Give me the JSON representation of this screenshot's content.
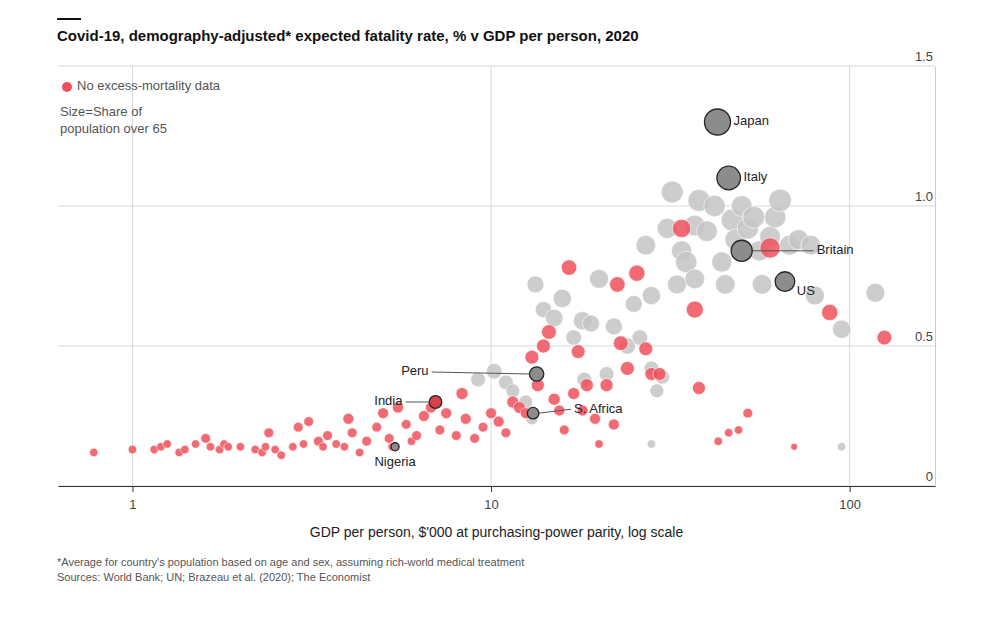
{
  "chart_data": {
    "type": "scatter",
    "title": "Covid-19, demography-adjusted* expected fatality rate, % v GDP per person, 2020",
    "x_label": "GDP per person, $'000 at purchasing-power parity, log scale",
    "size_label": [
      "Size=Share of",
      "population over 65"
    ],
    "notes": [
      "*Average for country's population based on age and sex, assuming rich-world medical treatment",
      "Sources: World Bank; UN; Brazeau et al. (2020); The Economist"
    ],
    "log": "x",
    "grid": true,
    "legend": "top-left",
    "xlim": [
      0.62,
      173
    ],
    "xticks": [
      1,
      10,
      100
    ],
    "ylim": [
      0,
      1.5
    ],
    "yticks": [
      0,
      0.5,
      {
        "value": 1,
        "label": "1.0"
      },
      1.5
    ],
    "series": [
      {
        "color": "#c4c4c4",
        "x": [
          9.2,
          10.2,
          11,
          11.5,
          12.5,
          13,
          13.3,
          14,
          15,
          15.8,
          17,
          18,
          19,
          20,
          18.2,
          21,
          22,
          24,
          25,
          26,
          27,
          28,
          28,
          29,
          30,
          31,
          32,
          33,
          34,
          35,
          37,
          37,
          38,
          40,
          42,
          44,
          45,
          47,
          48,
          50,
          52,
          54,
          56,
          57,
          60,
          62,
          64,
          68,
          72,
          78,
          80,
          95,
          118,
          28,
          95
        ],
        "values": [
          0.38,
          0.41,
          0.37,
          0.34,
          0.3,
          0.24,
          0.72,
          0.63,
          0.6,
          0.67,
          0.53,
          0.59,
          0.58,
          0.74,
          0.38,
          0.4,
          0.57,
          0.5,
          0.65,
          0.53,
          0.86,
          0.68,
          0.42,
          0.34,
          0.39,
          0.92,
          1.05,
          0.72,
          0.84,
          0.8,
          0.93,
          0.74,
          1.02,
          0.91,
          1.0,
          0.8,
          0.72,
          0.95,
          0.88,
          1.0,
          0.92,
          0.96,
          0.84,
          0.72,
          0.89,
          0.96,
          1.02,
          0.86,
          0.88,
          0.86,
          0.68,
          0.56,
          0.69,
          0.15,
          0.14
        ],
        "size": [
          9,
          10,
          9,
          8,
          8,
          6,
          12,
          11,
          13,
          14,
          10,
          14,
          12,
          15,
          9,
          9,
          12,
          11,
          12,
          10,
          16,
          14,
          9,
          8,
          9,
          17,
          20,
          15,
          17,
          19,
          18,
          16,
          20,
          18,
          19,
          17,
          16,
          20,
          18,
          18,
          19,
          20,
          17,
          16,
          18,
          19,
          21,
          17,
          17,
          16,
          15,
          14,
          15,
          3,
          3
        ]
      },
      {
        "name": "No excess-mortality data",
        "color": "#f0505a",
        "x": [
          0.78,
          1.0,
          1.15,
          1.2,
          1.25,
          1.35,
          1.4,
          1.5,
          1.6,
          1.65,
          1.75,
          1.8,
          1.85,
          2.0,
          2.2,
          2.3,
          2.35,
          2.4,
          2.5,
          2.6,
          2.8,
          2.9,
          3.0,
          3.1,
          3.3,
          3.4,
          3.5,
          3.7,
          3.9,
          4.0,
          4.1,
          4.3,
          4.5,
          4.8,
          5.0,
          5.2,
          5.3,
          5.5,
          5.8,
          6.0,
          6.2,
          6.5,
          6.8,
          7.2,
          7.5,
          8.0,
          8.3,
          8.5,
          9.0,
          9.5,
          10.0,
          10.5,
          11,
          11.5,
          12,
          12.5,
          13,
          13.5,
          14,
          14.5,
          15,
          15.5,
          16,
          16.5,
          17,
          17.5,
          18,
          18.5,
          19.5,
          20,
          21,
          22,
          22.5,
          23,
          24,
          25.5,
          27,
          28,
          29.5,
          34,
          37,
          38,
          43,
          46,
          49,
          52,
          60,
          70,
          88,
          125
        ],
        "values": [
          0.12,
          0.13,
          0.13,
          0.14,
          0.15,
          0.12,
          0.13,
          0.15,
          0.17,
          0.14,
          0.13,
          0.15,
          0.14,
          0.14,
          0.13,
          0.12,
          0.14,
          0.19,
          0.13,
          0.11,
          0.14,
          0.21,
          0.15,
          0.23,
          0.16,
          0.14,
          0.18,
          0.15,
          0.14,
          0.24,
          0.19,
          0.12,
          0.16,
          0.21,
          0.26,
          0.17,
          0.14,
          0.28,
          0.22,
          0.16,
          0.18,
          0.25,
          0.28,
          0.2,
          0.26,
          0.18,
          0.33,
          0.24,
          0.17,
          0.21,
          0.26,
          0.23,
          0.19,
          0.3,
          0.28,
          0.26,
          0.46,
          0.36,
          0.5,
          0.55,
          0.31,
          0.27,
          0.2,
          0.78,
          0.33,
          0.48,
          0.27,
          0.36,
          0.24,
          0.15,
          0.36,
          0.22,
          0.72,
          0.51,
          0.42,
          0.76,
          0.49,
          0.4,
          0.4,
          0.92,
          0.63,
          0.35,
          0.16,
          0.19,
          0.2,
          0.26,
          0.85,
          0.14,
          0.62,
          0.53
        ],
        "size": [
          3,
          3,
          3,
          3,
          3,
          3,
          3,
          3,
          4,
          3,
          3,
          3,
          3,
          3,
          3,
          3,
          3,
          4,
          3,
          3,
          3,
          4,
          3,
          4,
          4,
          3,
          4,
          3,
          3,
          5,
          4,
          3,
          4,
          4,
          5,
          4,
          3,
          5,
          4,
          3,
          4,
          5,
          5,
          4,
          5,
          4,
          6,
          5,
          4,
          4,
          5,
          5,
          4,
          6,
          6,
          5,
          8,
          7,
          8,
          9,
          6,
          5,
          4,
          10,
          6,
          8,
          5,
          7,
          5,
          3,
          7,
          5,
          10,
          9,
          8,
          11,
          8,
          7,
          7,
          14,
          12,
          7,
          3,
          3,
          3,
          4,
          17,
          2,
          11,
          9
        ]
      },
      {
        "labels": [
          "Japan",
          "Italy",
          "Britain",
          "US",
          "Peru",
          "India",
          "S. Africa",
          "Nigeria"
        ],
        "colors": [
          "#8c8c8c",
          "#8c8c8c",
          "#8c8c8c",
          "#8c8c8c",
          "#8c8c8c",
          "#d9404a",
          "#8c8c8c",
          "#8c8c8c"
        ],
        "x": [
          42.8,
          46,
          50,
          66,
          13.4,
          7.0,
          13.1,
          5.4
        ],
        "values": [
          1.3,
          1.1,
          0.84,
          0.73,
          0.4,
          0.3,
          0.26,
          0.14
        ],
        "size": [
          28,
          23,
          18.5,
          16,
          8.5,
          6.6,
          5.5,
          2.7
        ]
      }
    ]
  }
}
